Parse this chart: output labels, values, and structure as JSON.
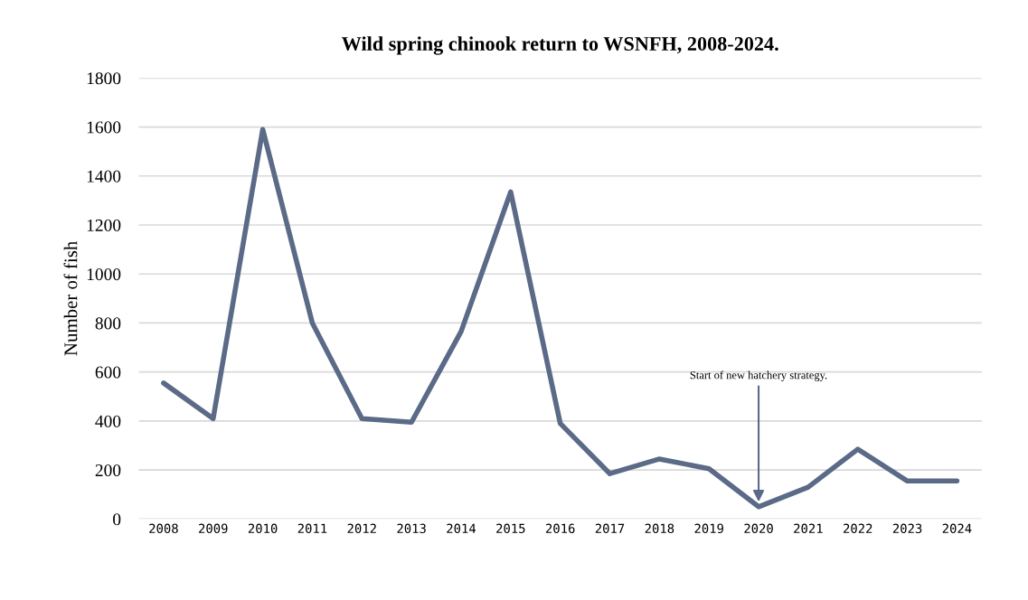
{
  "chart_data": {
    "type": "line",
    "title": "Wild spring chinook return to WSNFH, 2008-2024.",
    "ylabel": "Number of fish",
    "categories": [
      "2008",
      "2009",
      "2010",
      "2011",
      "2012",
      "2013",
      "2014",
      "2015",
      "2016",
      "2017",
      "2018",
      "2019",
      "2020",
      "2021",
      "2022",
      "2023",
      "2024"
    ],
    "series": [
      {
        "color": "#5a6a87",
        "values": [
          555,
          410,
          1590,
          800,
          410,
          395,
          765,
          1335,
          390,
          185,
          245,
          205,
          50,
          130,
          285,
          155,
          155
        ]
      }
    ],
    "ylim": [
      0,
      1800
    ],
    "yticks": [
      0,
      200,
      400,
      600,
      800,
      1000,
      1200,
      1400,
      1600,
      1800
    ],
    "grid": "y",
    "marker": "none",
    "line_style": "solid",
    "annotations": [
      {
        "text": "Start of new hatchery strategy.",
        "x": "2020",
        "y": 60
      }
    ]
  }
}
